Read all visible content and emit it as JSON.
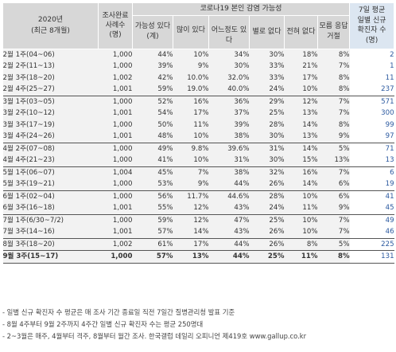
{
  "header": {
    "period_line1": "2020년",
    "period_line2": "(최근 8개월)",
    "sample_line1": "조사완료",
    "sample_line2": "사례수",
    "sample_line3": "(명)",
    "group_title": "코로나19 본인 감염 가능성",
    "possible_sum": "가능성 있다 (계)",
    "very_likely": "많이 있다",
    "somewhat_likely": "어느정도 있다",
    "not_very": "별로 없다",
    "not_at_all": "전혀 없다",
    "no_answer": "모름 응답 거절",
    "cases_line1": "7일 평균",
    "cases_line2": "일별 신규",
    "cases_line3": "확진자 수",
    "cases_line4": "(명)"
  },
  "rows": [
    {
      "period": "2월 1주(04~06)",
      "sample": "1,000",
      "sum": "44%",
      "very": "10%",
      "some": "34%",
      "notvery": "30%",
      "notall": "18%",
      "na": "8%",
      "cases": "2",
      "group_start": false
    },
    {
      "period": "2월 2주(11~13)",
      "sample": "1,000",
      "sum": "39%",
      "very": "9%",
      "some": "30%",
      "notvery": "33%",
      "notall": "21%",
      "na": "7%",
      "cases": "1",
      "group_start": false
    },
    {
      "period": "2월 3주(18~20)",
      "sample": "1,002",
      "sum": "42%",
      "very": "10.0%",
      "some": "32.0%",
      "notvery": "33%",
      "notall": "17%",
      "na": "8%",
      "cases": "11",
      "group_start": false
    },
    {
      "period": "2월 4주(25~27)",
      "sample": "1,001",
      "sum": "59%",
      "very": "19.0%",
      "some": "40.0%",
      "notvery": "24%",
      "notall": "10%",
      "na": "8%",
      "cases": "237",
      "group_start": false
    },
    {
      "period": "3월 1주(03~05)",
      "sample": "1,000",
      "sum": "52%",
      "very": "16%",
      "some": "36%",
      "notvery": "29%",
      "notall": "12%",
      "na": "7%",
      "cases": "571",
      "group_start": true
    },
    {
      "period": "3월 2주(10~12)",
      "sample": "1,001",
      "sum": "54%",
      "very": "17%",
      "some": "37%",
      "notvery": "25%",
      "notall": "13%",
      "na": "7%",
      "cases": "300",
      "group_start": false
    },
    {
      "period": "3월 3주(17~19)",
      "sample": "1,000",
      "sum": "50%",
      "very": "11%",
      "some": "39%",
      "notvery": "28%",
      "notall": "14%",
      "na": "8%",
      "cases": "99",
      "group_start": false
    },
    {
      "period": "3월 4주(24~26)",
      "sample": "1,001",
      "sum": "48%",
      "very": "10%",
      "some": "38%",
      "notvery": "30%",
      "notall": "13%",
      "na": "9%",
      "cases": "97",
      "group_start": false
    },
    {
      "period": "4월 2주(07~08)",
      "sample": "1,000",
      "sum": "49%",
      "very": "9.8%",
      "some": "39.6%",
      "notvery": "31%",
      "notall": "14%",
      "na": "5%",
      "cases": "71",
      "group_start": true
    },
    {
      "period": "4월 4주(21~23)",
      "sample": "1,000",
      "sum": "41%",
      "very": "10%",
      "some": "31%",
      "notvery": "30%",
      "notall": "15%",
      "na": "13%",
      "cases": "13",
      "group_start": false
    },
    {
      "period": "5월 1주(06~07)",
      "sample": "1,004",
      "sum": "45%",
      "very": "7%",
      "some": "38%",
      "notvery": "32%",
      "notall": "16%",
      "na": "7%",
      "cases": "6",
      "group_start": true
    },
    {
      "period": "5월 3주(19~21)",
      "sample": "1,000",
      "sum": "53%",
      "very": "9%",
      "some": "44%",
      "notvery": "26%",
      "notall": "14%",
      "na": "6%",
      "cases": "19",
      "group_start": false
    },
    {
      "period": "6월 1주(02~04)",
      "sample": "1,000",
      "sum": "56%",
      "very": "11.7%",
      "some": "44.6%",
      "notvery": "28%",
      "notall": "10%",
      "na": "6%",
      "cases": "41",
      "group_start": true
    },
    {
      "period": "6월 3주(16~18)",
      "sample": "1,001",
      "sum": "55%",
      "very": "12%",
      "some": "43%",
      "notvery": "24%",
      "notall": "11%",
      "na": "9%",
      "cases": "45",
      "group_start": false
    },
    {
      "period": "7월 1주(6/30~7/2)",
      "sample": "1,000",
      "sum": "59%",
      "very": "12%",
      "some": "47%",
      "notvery": "25%",
      "notall": "10%",
      "na": "7%",
      "cases": "49",
      "group_start": true
    },
    {
      "period": "7월 3주(14~16)",
      "sample": "1,001",
      "sum": "57%",
      "very": "14%",
      "some": "43%",
      "notvery": "26%",
      "notall": "10%",
      "na": "7%",
      "cases": "46",
      "group_start": false
    },
    {
      "period": "8월 3주(18~20)",
      "sample": "1,002",
      "sum": "61%",
      "very": "17%",
      "some": "44%",
      "notvery": "26%",
      "notall": "8%",
      "na": "5%",
      "cases": "225",
      "group_start": true
    }
  ],
  "last_row": {
    "period": "9월 3주(15~17)",
    "sample": "1,000",
    "sum": "57%",
    "very": "13%",
    "some": "44%",
    "notvery": "25%",
    "notall": "11%",
    "na": "8%",
    "cases": "131"
  },
  "notes": [
    "- 일별 신규 확진자 수 평균은 매 조사 기간 종료일 직전 7일간 질병관리청 발표 기준",
    "- 8월 4주부터 9월 2주까지 4주간 일별 신규 확진자 수는 평균 250명대",
    "- 2~3월은 매주, 4월부터 격주, 8월부터 월간 조사. 한국갤럽 데일리 오피니언 제419호 www.gallup.co.kr"
  ]
}
